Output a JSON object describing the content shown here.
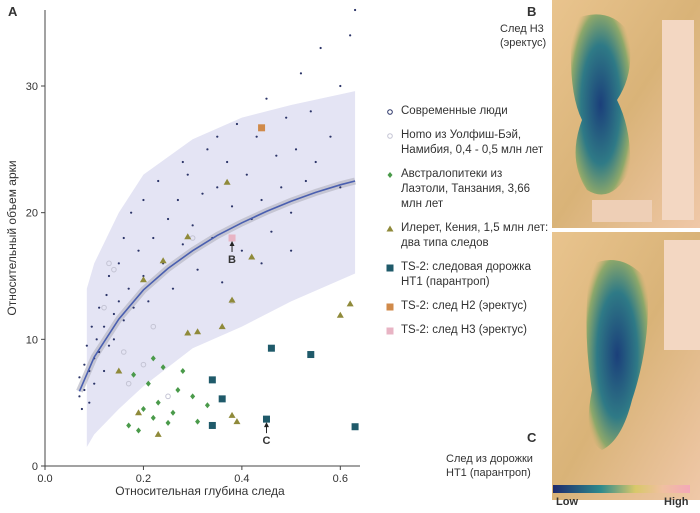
{
  "chart_data": {
    "type": "scatter",
    "panel_label": "A",
    "x_label": "Относительная глубина следа",
    "y_label": "Относительный объем арки",
    "xlim": [
      0,
      0.64
    ],
    "ylim": [
      0,
      36
    ],
    "xticks": [
      {
        "value": 0,
        "label": "0.0"
      },
      0.2,
      0.4,
      0.6
    ],
    "yticks": [
      0,
      10,
      20,
      30
    ],
    "band": {
      "color": "#e4e4f4",
      "x": [
        0.085,
        0.1,
        0.15,
        0.2,
        0.3,
        0.4,
        0.5,
        0.63
      ],
      "lower": [
        1.5,
        2.5,
        4.5,
        6.3,
        9.3,
        11,
        13,
        15.2
      ],
      "upper": [
        14,
        16,
        20,
        23,
        25.8,
        27.5,
        28.5,
        29.6
      ]
    },
    "fit": {
      "color": "#4a5fb0",
      "x": [
        0.07,
        0.1,
        0.15,
        0.2,
        0.25,
        0.3,
        0.35,
        0.4,
        0.45,
        0.5,
        0.55,
        0.6,
        0.63
      ],
      "y": [
        5.9,
        8.6,
        11.6,
        13.9,
        15.6,
        17,
        18.2,
        19.2,
        20.1,
        20.9,
        21.6,
        22.2,
        22.5
      ]
    },
    "series": [
      {
        "name": "Современные люди",
        "color": "#2b3468",
        "marker": "dot",
        "x": [
          0.07,
          0.07,
          0.075,
          0.08,
          0.08,
          0.085,
          0.09,
          0.09,
          0.095,
          0.1,
          0.1,
          0.105,
          0.11,
          0.11,
          0.12,
          0.12,
          0.125,
          0.13,
          0.13,
          0.14,
          0.14,
          0.15,
          0.15,
          0.16,
          0.16,
          0.17,
          0.175,
          0.18,
          0.19,
          0.2,
          0.2,
          0.21,
          0.22,
          0.23,
          0.24,
          0.25,
          0.26,
          0.27,
          0.28,
          0.29,
          0.3,
          0.31,
          0.32,
          0.33,
          0.34,
          0.35,
          0.36,
          0.37,
          0.38,
          0.39,
          0.4,
          0.41,
          0.42,
          0.43,
          0.44,
          0.45,
          0.46,
          0.47,
          0.48,
          0.49,
          0.5,
          0.51,
          0.52,
          0.53,
          0.54,
          0.55,
          0.56,
          0.58,
          0.6,
          0.62,
          0.63,
          0.5,
          0.44,
          0.35,
          0.28,
          0.6
        ],
        "y": [
          5.5,
          7,
          4.5,
          8,
          6,
          9.5,
          5,
          7.5,
          11,
          8.5,
          6.5,
          10,
          12.5,
          9,
          7.5,
          11,
          13.5,
          9.5,
          15,
          12,
          10,
          16,
          13,
          11.5,
          18,
          14,
          20,
          12.5,
          17,
          15,
          21,
          13,
          18,
          22.5,
          16,
          19.5,
          14,
          21,
          17.5,
          23,
          19,
          15.5,
          21.5,
          25,
          18,
          22,
          14.5,
          24,
          20.5,
          27,
          17,
          23,
          19.5,
          26,
          21,
          29,
          18.5,
          24.5,
          22,
          27.5,
          20,
          25,
          31,
          22.5,
          28,
          24,
          33,
          26,
          30,
          34,
          36,
          17,
          16,
          26,
          24,
          22
        ]
      },
      {
        "name": "Homo из Уолфиш-Бэй, Намибия, 0,4 - 0,5 млн лет",
        "color": "#c4c4d4",
        "marker": "circle",
        "x": [
          0.13,
          0.14,
          0.16,
          0.18,
          0.2,
          0.22,
          0.12,
          0.17,
          0.25,
          0.38,
          0.3
        ],
        "y": [
          16,
          15.5,
          9,
          13,
          8,
          11,
          12.5,
          6.5,
          5.5,
          13,
          18
        ]
      },
      {
        "name": "Австралопитеки из Лаэтоли, Танзания, 3,66 млн лет",
        "color": "#4a9a4a",
        "marker": "diamond",
        "x": [
          0.17,
          0.18,
          0.2,
          0.21,
          0.22,
          0.23,
          0.26,
          0.27,
          0.28,
          0.3,
          0.31,
          0.33,
          0.24,
          0.19,
          0.25,
          0.22
        ],
        "y": [
          3.2,
          7.2,
          4.5,
          6.5,
          3.8,
          5,
          4.2,
          6,
          7.5,
          5.5,
          3.5,
          4.8,
          7.8,
          2.8,
          3.4,
          8.5
        ]
      },
      {
        "name": "Илерет, Кения, 1,5 млн лет:  два типа следов",
        "color": "#8f8a3a",
        "marker": "triangle",
        "x": [
          0.15,
          0.19,
          0.23,
          0.24,
          0.29,
          0.29,
          0.31,
          0.36,
          0.37,
          0.38,
          0.38,
          0.42,
          0.6,
          0.62,
          0.2,
          0.39
        ],
        "y": [
          7.5,
          4.2,
          2.5,
          16.2,
          18.1,
          10.5,
          10.6,
          11,
          22.4,
          13.1,
          4,
          16.5,
          11.9,
          12.8,
          14.7,
          3.5
        ]
      },
      {
        "name": "TS-2: следовая дорожка HT1 (парантроп)",
        "color": "#1f5a6a",
        "marker": "square",
        "x": [
          0.34,
          0.36,
          0.34,
          0.45,
          0.46,
          0.54,
          0.63
        ],
        "y": [
          6.8,
          5.3,
          3.2,
          3.7,
          9.3,
          8.8,
          3.1
        ]
      },
      {
        "name": "TS-2: след H2 (эректус)",
        "color": "#d08a4a",
        "marker": "square",
        "x": [
          0.44
        ],
        "y": [
          26.7
        ]
      },
      {
        "name": "TS-2: след H3 (эректус)",
        "color": "#e8b4c4",
        "marker": "square",
        "x": [
          0.38
        ],
        "y": [
          18
        ]
      }
    ],
    "annotations": [
      {
        "text": "B",
        "x": 0.38,
        "y": 18
      },
      {
        "text": "C",
        "x": 0.45,
        "y": 3.7
      }
    ]
  },
  "panels": {
    "top_label": "B",
    "top_caption": "След H3 (эректус)",
    "bottom_label": "C",
    "bottom_caption": "След из дорожки HT1 (парантроп)",
    "colorbar_low": "Low",
    "colorbar_high": "High"
  }
}
